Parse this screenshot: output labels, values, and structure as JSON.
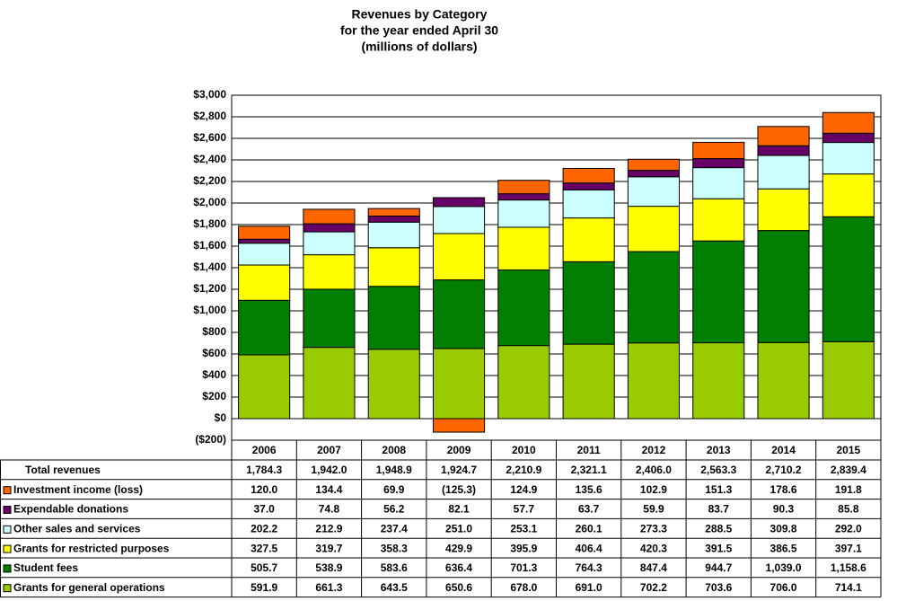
{
  "chart_data": {
    "type": "stacked-bar-table",
    "title": "Revenues by Category",
    "subtitle": [
      "for the year ended April 30",
      "(millions of dollars)"
    ],
    "categories": [
      "2006",
      "2007",
      "2008",
      "2009",
      "2010",
      "2011",
      "2012",
      "2013",
      "2014",
      "2015"
    ],
    "ylim": [
      -200,
      3000
    ],
    "yticks": [
      {
        "value": -200,
        "label": "($200)"
      },
      {
        "value": 0,
        "label": "$0"
      },
      {
        "value": 200,
        "label": "$200"
      },
      {
        "value": 400,
        "label": "$400"
      },
      {
        "value": 600,
        "label": "$600"
      },
      {
        "value": 800,
        "label": "$800"
      },
      {
        "value": 1000,
        "label": "$1,000"
      },
      {
        "value": 1200,
        "label": "$1,200"
      },
      {
        "value": 1400,
        "label": "$1,400"
      },
      {
        "value": 1600,
        "label": "$1,600"
      },
      {
        "value": 1800,
        "label": "$1,800"
      },
      {
        "value": 2000,
        "label": "$2,000"
      },
      {
        "value": 2200,
        "label": "$2,200"
      },
      {
        "value": 2400,
        "label": "$2,400"
      },
      {
        "value": 2600,
        "label": "$2,600"
      },
      {
        "value": 2800,
        "label": "$2,800"
      },
      {
        "value": 3000,
        "label": "$3,000"
      }
    ],
    "grid": true,
    "totals": {
      "name": "Total revenues",
      "values": [
        1784.3,
        1942.0,
        1948.9,
        1924.7,
        2210.9,
        2321.1,
        2406.0,
        2563.3,
        2710.2,
        2839.4
      ],
      "value_labels": [
        "1,784.3",
        "1,942.0",
        "1,948.9",
        "1,924.7",
        "2,210.9",
        "2,321.1",
        "2,406.0",
        "2,563.3",
        "2,710.2",
        "2,839.4"
      ]
    },
    "series": [
      {
        "name": "Investment income (loss)",
        "color": "#ff6600",
        "values": [
          120.0,
          134.4,
          69.9,
          -125.3,
          124.9,
          135.6,
          102.9,
          151.3,
          178.6,
          191.8
        ],
        "value_labels": [
          "120.0",
          "134.4",
          "69.9",
          "(125.3)",
          "124.9",
          "135.6",
          "102.9",
          "151.3",
          "178.6",
          "191.8"
        ]
      },
      {
        "name": "Expendable donations",
        "color": "#660066",
        "values": [
          37.0,
          74.8,
          56.2,
          82.1,
          57.7,
          63.7,
          59.9,
          83.7,
          90.3,
          85.8
        ],
        "value_labels": [
          "37.0",
          "74.8",
          "56.2",
          "82.1",
          "57.7",
          "63.7",
          "59.9",
          "83.7",
          "90.3",
          "85.8"
        ]
      },
      {
        "name": "Other sales and services",
        "color": "#ccffff",
        "values": [
          202.2,
          212.9,
          237.4,
          251.0,
          253.1,
          260.1,
          273.3,
          288.5,
          309.8,
          292.0
        ],
        "value_labels": [
          "202.2",
          "212.9",
          "237.4",
          "251.0",
          "253.1",
          "260.1",
          "273.3",
          "288.5",
          "309.8",
          "292.0"
        ]
      },
      {
        "name": "Grants for restricted purposes",
        "color": "#ffff00",
        "values": [
          327.5,
          319.7,
          358.3,
          429.9,
          395.9,
          406.4,
          420.3,
          391.5,
          386.5,
          397.1
        ],
        "value_labels": [
          "327.5",
          "319.7",
          "358.3",
          "429.9",
          "395.9",
          "406.4",
          "420.3",
          "391.5",
          "386.5",
          "397.1"
        ]
      },
      {
        "name": "Student fees",
        "color": "#007f00",
        "values": [
          505.7,
          538.9,
          583.6,
          636.4,
          701.3,
          764.3,
          847.4,
          944.7,
          1039.0,
          1158.6
        ],
        "value_labels": [
          "505.7",
          "538.9",
          "583.6",
          "636.4",
          "701.3",
          "764.3",
          "847.4",
          "944.7",
          "1,039.0",
          "1,158.6"
        ]
      },
      {
        "name": "Grants for general operations",
        "color": "#99cc00",
        "values": [
          591.9,
          661.3,
          643.5,
          650.6,
          678.0,
          691.0,
          702.2,
          703.6,
          706.0,
          714.1
        ],
        "value_labels": [
          "591.9",
          "661.3",
          "643.5",
          "650.6",
          "678.0",
          "691.0",
          "702.2",
          "703.6",
          "706.0",
          "714.1"
        ]
      }
    ]
  }
}
